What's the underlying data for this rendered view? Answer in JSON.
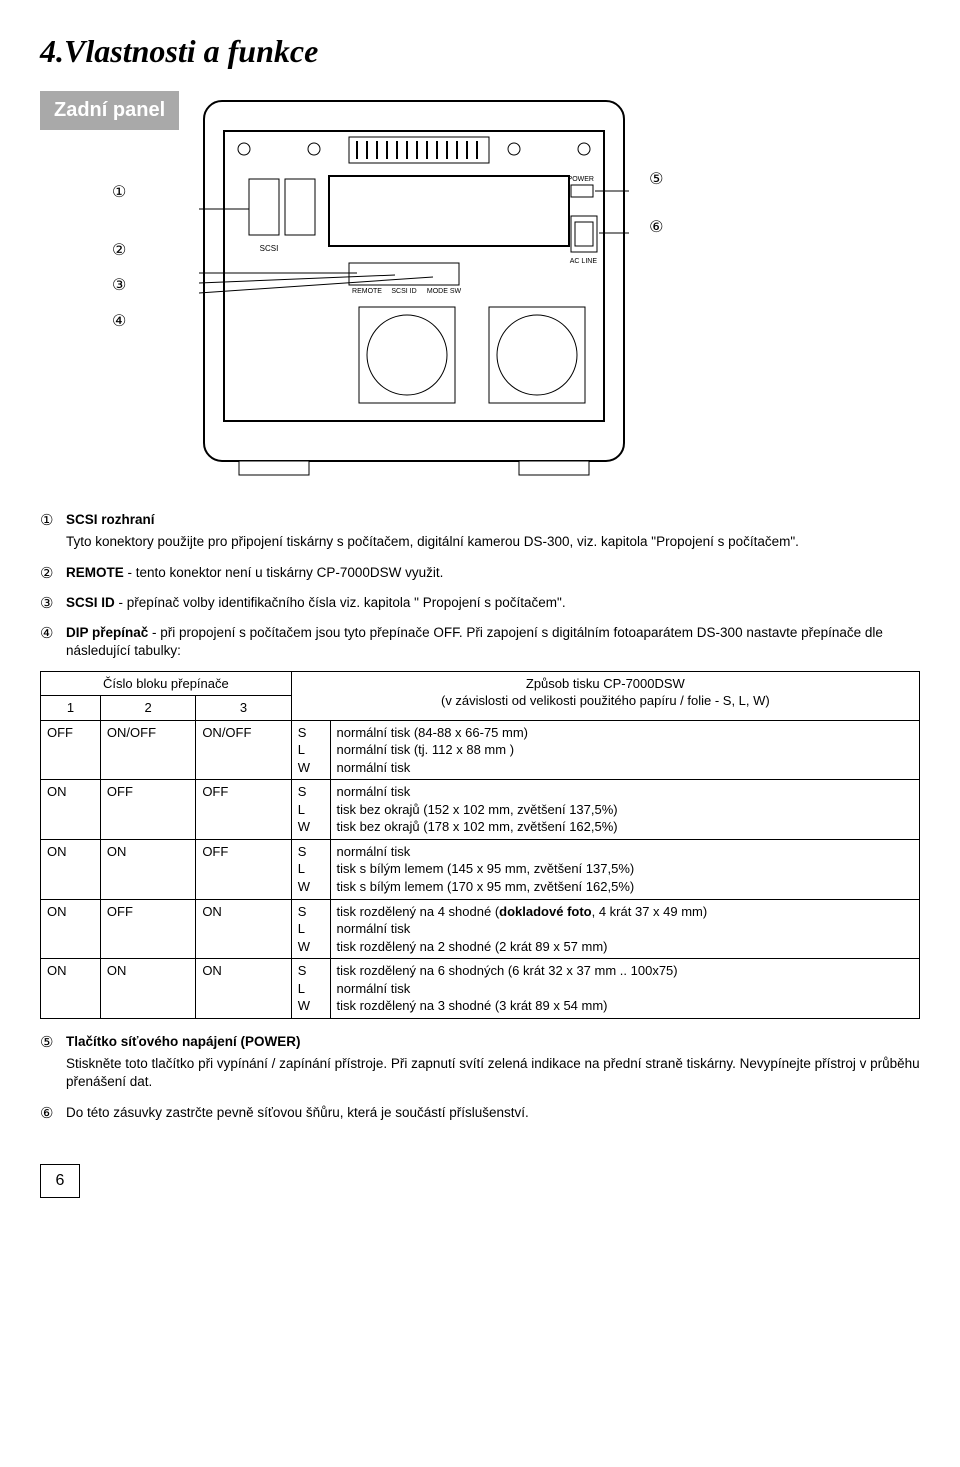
{
  "page": {
    "title": "4.Vlastnosti a funkce",
    "label_box": "Zadní panel",
    "page_number": "6"
  },
  "pointers_left_top": "①",
  "pointers_left_group": [
    "②",
    "③",
    "④"
  ],
  "pointers_right": [
    "⑤",
    "⑥"
  ],
  "device_labels": {
    "scsi": "SCSI",
    "remote": "REMOTE",
    "scsi_id": "SCSI ID",
    "mode_sw": "MODE SW",
    "power": "POWER",
    "ac_line": "AC LINE"
  },
  "items": [
    {
      "num": "①",
      "title": "SCSI rozhraní",
      "paras": [
        "Tyto konektory použijte pro připojení tiskárny s počítačem, digitální kamerou DS-300, viz. kapitola \"Propojení s počítačem\"."
      ]
    },
    {
      "num": "②",
      "title": "",
      "run_inline": true,
      "inline_title": "REMOTE",
      "paras": [
        " - tento konektor není u tiskárny CP-7000DSW využit."
      ]
    },
    {
      "num": "③",
      "title": "",
      "run_inline": true,
      "inline_title": "SCSI  ID",
      "paras": [
        " - přepínač volby identifikačního čísla viz. kapitola \" Propojení s počítačem\"."
      ]
    },
    {
      "num": "④",
      "title": "",
      "run_inline": true,
      "inline_title": "DIP přepínač",
      "paras": [
        " - při propojení s počítačem jsou tyto přepínače OFF. Při zapojení s digitálním fotoaparátem DS-300 nastavte přepínače dle následující tabulky:"
      ]
    }
  ],
  "table": {
    "group_header_left": "Číslo bloku přepínače",
    "group_header_right_1": "Způsob tisku CP-7000DSW",
    "group_header_right_2": "(v závislosti od velikosti použitého papíru / folie - S, L, W)",
    "col1": "1",
    "col2": "2",
    "col3": "3",
    "rows": [
      {
        "c1": "OFF",
        "c2": "ON/OFF",
        "c3": "ON/OFF",
        "sz": [
          "S",
          "L",
          "W"
        ],
        "desc": [
          "normální tisk (84-88 x 66-75 mm)",
          "normální tisk (tj. 112 x 88 mm )",
          "normální tisk"
        ]
      },
      {
        "c1": "ON",
        "c2": "OFF",
        "c3": "OFF",
        "sz": [
          "S",
          "L",
          "W"
        ],
        "desc": [
          "normální tisk",
          "tisk bez okrajů (152 x 102 mm,  zvětšení 137,5%)",
          "tisk bez okrajů (178 x 102 mm,  zvětšení 162,5%)"
        ]
      },
      {
        "c1": "ON",
        "c2": "ON",
        "c3": "OFF",
        "sz": [
          "S",
          "L",
          "W"
        ],
        "desc": [
          "normální tisk",
          "tisk s bílým lemem (145 x 95 mm, zvětšení 137,5%)",
          "tisk s bílým lemem (170 x 95 mm, zvětšení 162,5%)"
        ]
      },
      {
        "c1": "ON",
        "c2": "OFF",
        "c3": "ON",
        "sz": [
          "S",
          "L",
          "W"
        ],
        "desc": [
          "tisk rozdělený na 4 shodné (dokladové foto, 4 krát 37 x 49 mm)",
          "normální tisk",
          "tisk rozdělený na 2 shodné (2 krát 89 x 57 mm)"
        ]
      },
      {
        "c1": "ON",
        "c2": "ON",
        "c3": "ON",
        "sz": [
          "S",
          "L",
          "W"
        ],
        "desc": [
          "tisk rozdělený na 6 shodných (6 krát 32 x 37 mm  .. 100x75)",
          "normální tisk",
          "tisk rozdělený na 3 shodné (3 krát 89 x 54 mm)"
        ]
      }
    ]
  },
  "item5": {
    "num": "⑤",
    "title": "Tlačítko síťového napájení (POWER)",
    "text": "Stiskněte toto tlačítko při vypínání / zapínání přístroje. Při zapnutí svítí zelená indikace na přední straně tiskárny. Nevypínejte přístroj v průběhu přenášení dat."
  },
  "item6": {
    "num": "⑥",
    "text": "Do této zásuvky zastrčte pevně síťovou šňůru, která je součástí příslušenství."
  }
}
